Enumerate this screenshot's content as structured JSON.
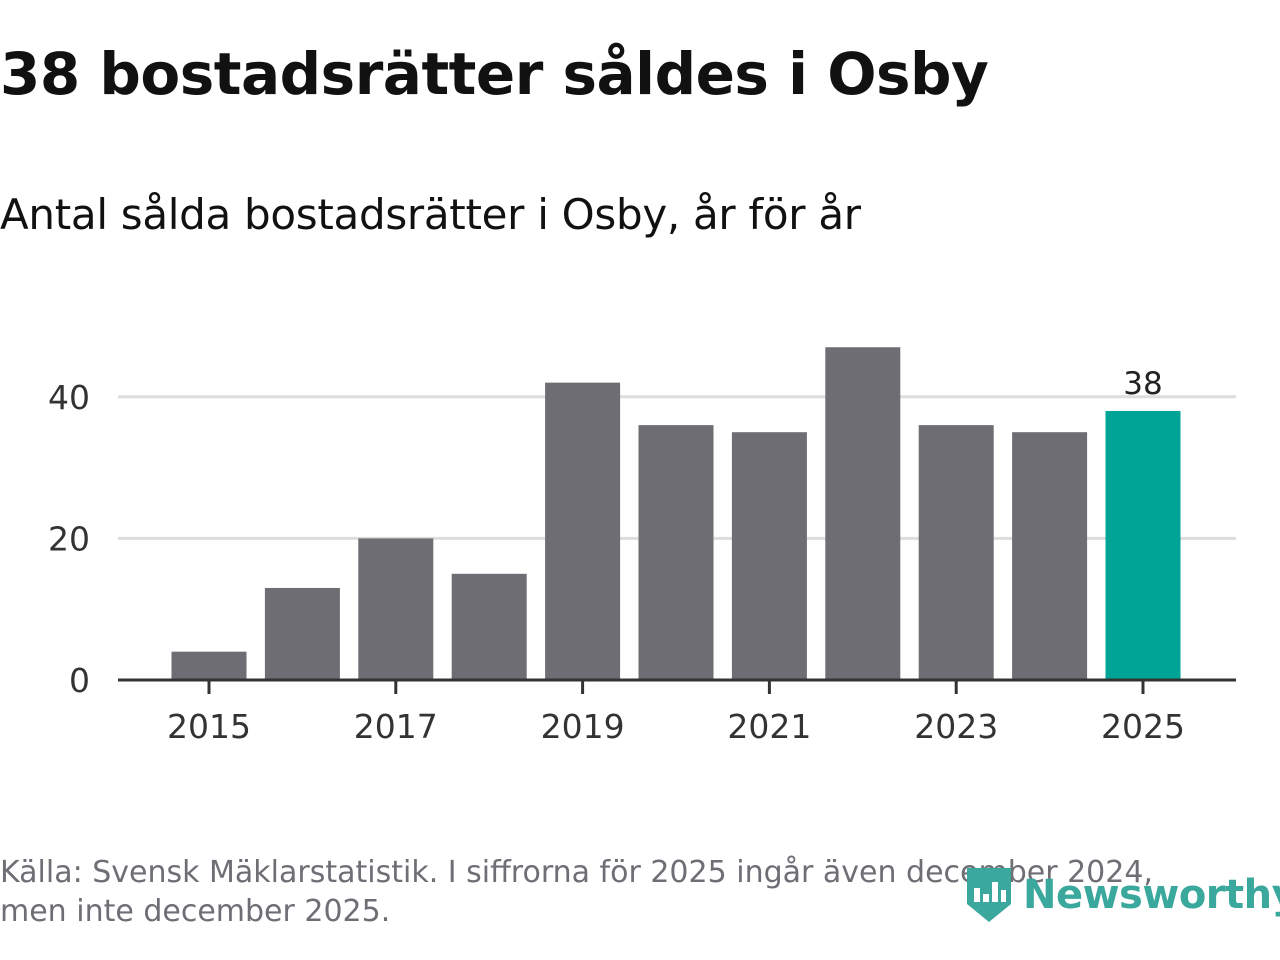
{
  "header": {
    "title": "38 bostadsrätter såldes i Osby",
    "subtitle": "Antal sålda bostadsrätter i Osby, år för år"
  },
  "footer": {
    "source": "Källa: Svensk Mäklarstatistik. I siffrorna för 2025 ingår även december 2024, men inte december 2025.",
    "logo_text": "Newsworthy"
  },
  "colors": {
    "bar": "#6e6d73",
    "highlight": "#00a497",
    "grid": "#dddddd",
    "axis": "#333333",
    "logo": "#3aa89d"
  },
  "icons": {
    "logo": "newsworthy-logo-icon"
  },
  "chart_data": {
    "type": "bar",
    "title": "38 bostadsrätter såldes i Osby",
    "subtitle": "Antal sålda bostadsrätter i Osby, år för år",
    "xlabel": "",
    "ylabel": "",
    "categories": [
      "2015",
      "2016",
      "2017",
      "2018",
      "2019",
      "2020",
      "2021",
      "2022",
      "2023",
      "2024",
      "2025"
    ],
    "values": [
      4,
      13,
      20,
      15,
      42,
      36,
      35,
      47,
      36,
      35,
      38
    ],
    "x_tick_labels": [
      "2015",
      "2017",
      "2019",
      "2021",
      "2023",
      "2025"
    ],
    "y_ticks": [
      0,
      20,
      40
    ],
    "ylim": [
      0,
      50
    ],
    "grid": true,
    "highlight_index": 10,
    "data_labels": [
      {
        "index": 10,
        "text": "38"
      }
    ]
  }
}
